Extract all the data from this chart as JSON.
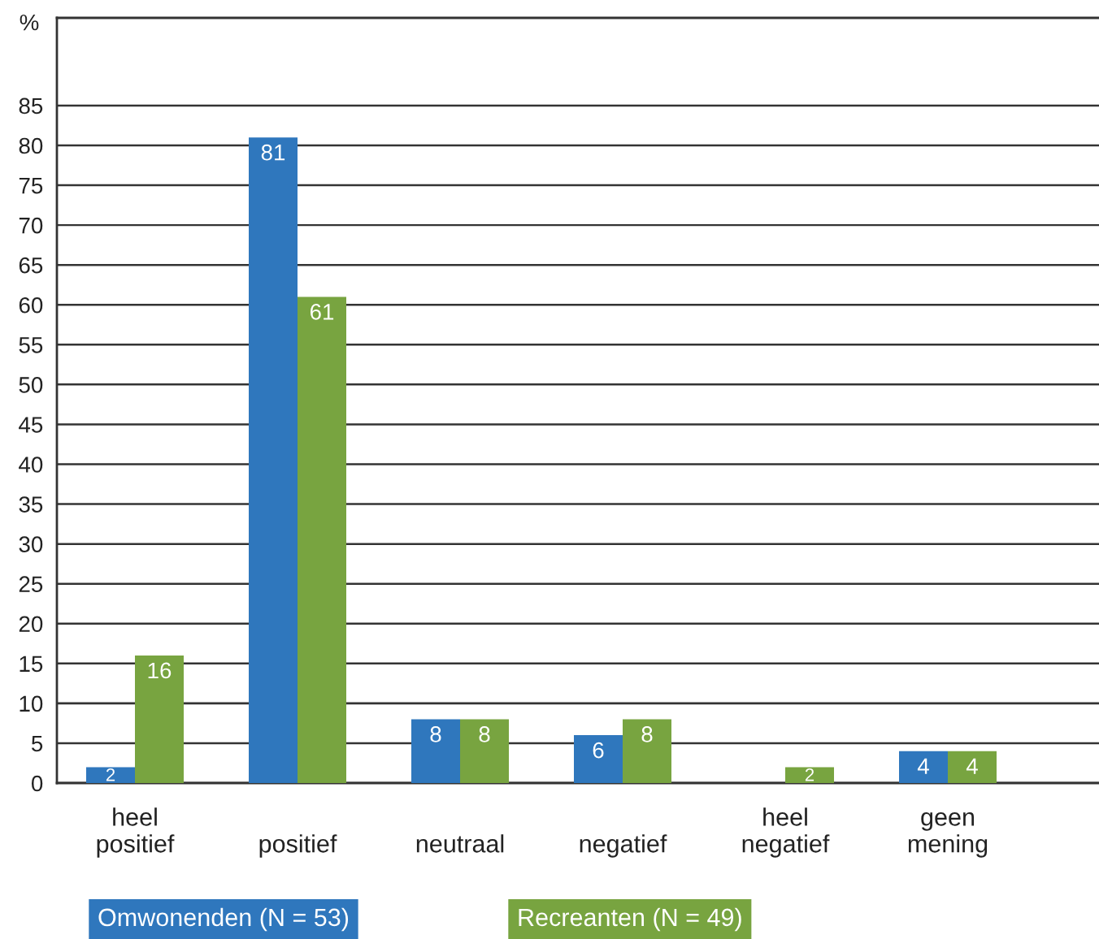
{
  "chart_data": {
    "type": "bar",
    "ylabel": "%",
    "categories": [
      "heel\npositief",
      "positief",
      "neutraal",
      "negatief",
      "heel\nnegatief",
      "geen\nmening"
    ],
    "series": [
      {
        "name": "Omwonenden (N = 53)",
        "color": "#2f77bd",
        "values": [
          2,
          81,
          8,
          6,
          0,
          4
        ],
        "value_labels": [
          "2",
          "81",
          "8",
          "6",
          null,
          "4"
        ]
      },
      {
        "name": "Recreanten (N = 49)",
        "color": "#78a440",
        "values": [
          16,
          61,
          8,
          8,
          2,
          4
        ],
        "value_labels": [
          "16",
          "61",
          "8",
          "8",
          "2",
          "4"
        ]
      }
    ],
    "ylim": [
      0,
      96
    ],
    "yticks": [
      0,
      5,
      10,
      15,
      20,
      25,
      30,
      35,
      40,
      45,
      50,
      55,
      60,
      65,
      70,
      75,
      80,
      85
    ],
    "grid": "y",
    "legend": "bottom"
  }
}
